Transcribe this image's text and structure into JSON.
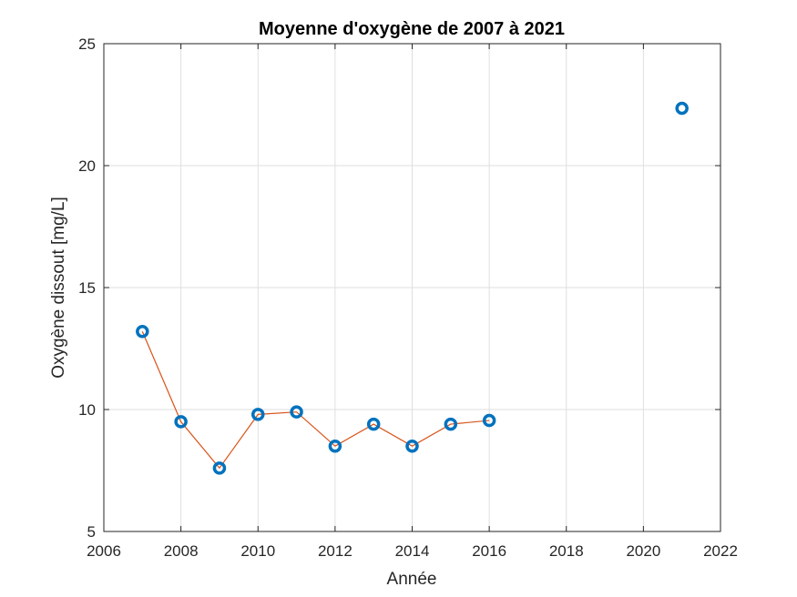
{
  "chart_data": {
    "type": "line",
    "title": "Moyenne d'oxygène de 2007 à 2021",
    "xlabel": "Année",
    "ylabel": "Oxygène dissout [mg/L]",
    "xlim": [
      2006,
      2022
    ],
    "ylim": [
      5,
      25
    ],
    "xticks": [
      "2006",
      "2008",
      "2010",
      "2012",
      "2014",
      "2016",
      "2018",
      "2020",
      "2022"
    ],
    "yticks": [
      "5",
      "10",
      "15",
      "20",
      "25"
    ],
    "grid": true,
    "series": [
      {
        "marker": "circle",
        "color": "#0072BD",
        "x": [
          2007,
          2008,
          2009,
          2010,
          2011,
          2012,
          2013,
          2014,
          2015,
          2016,
          2021
        ],
        "y": [
          13.2,
          9.5,
          7.6,
          9.8,
          9.9,
          8.5,
          9.4,
          8.5,
          9.4,
          9.55,
          22.35
        ]
      },
      {
        "style": "line",
        "color": "#D95319",
        "x": [
          2007,
          2008,
          2009,
          2010,
          2011,
          2012,
          2013,
          2014,
          2015,
          2016
        ],
        "y": [
          13.2,
          9.5,
          7.6,
          9.8,
          9.9,
          8.5,
          9.4,
          8.5,
          9.4,
          9.55
        ]
      }
    ]
  }
}
